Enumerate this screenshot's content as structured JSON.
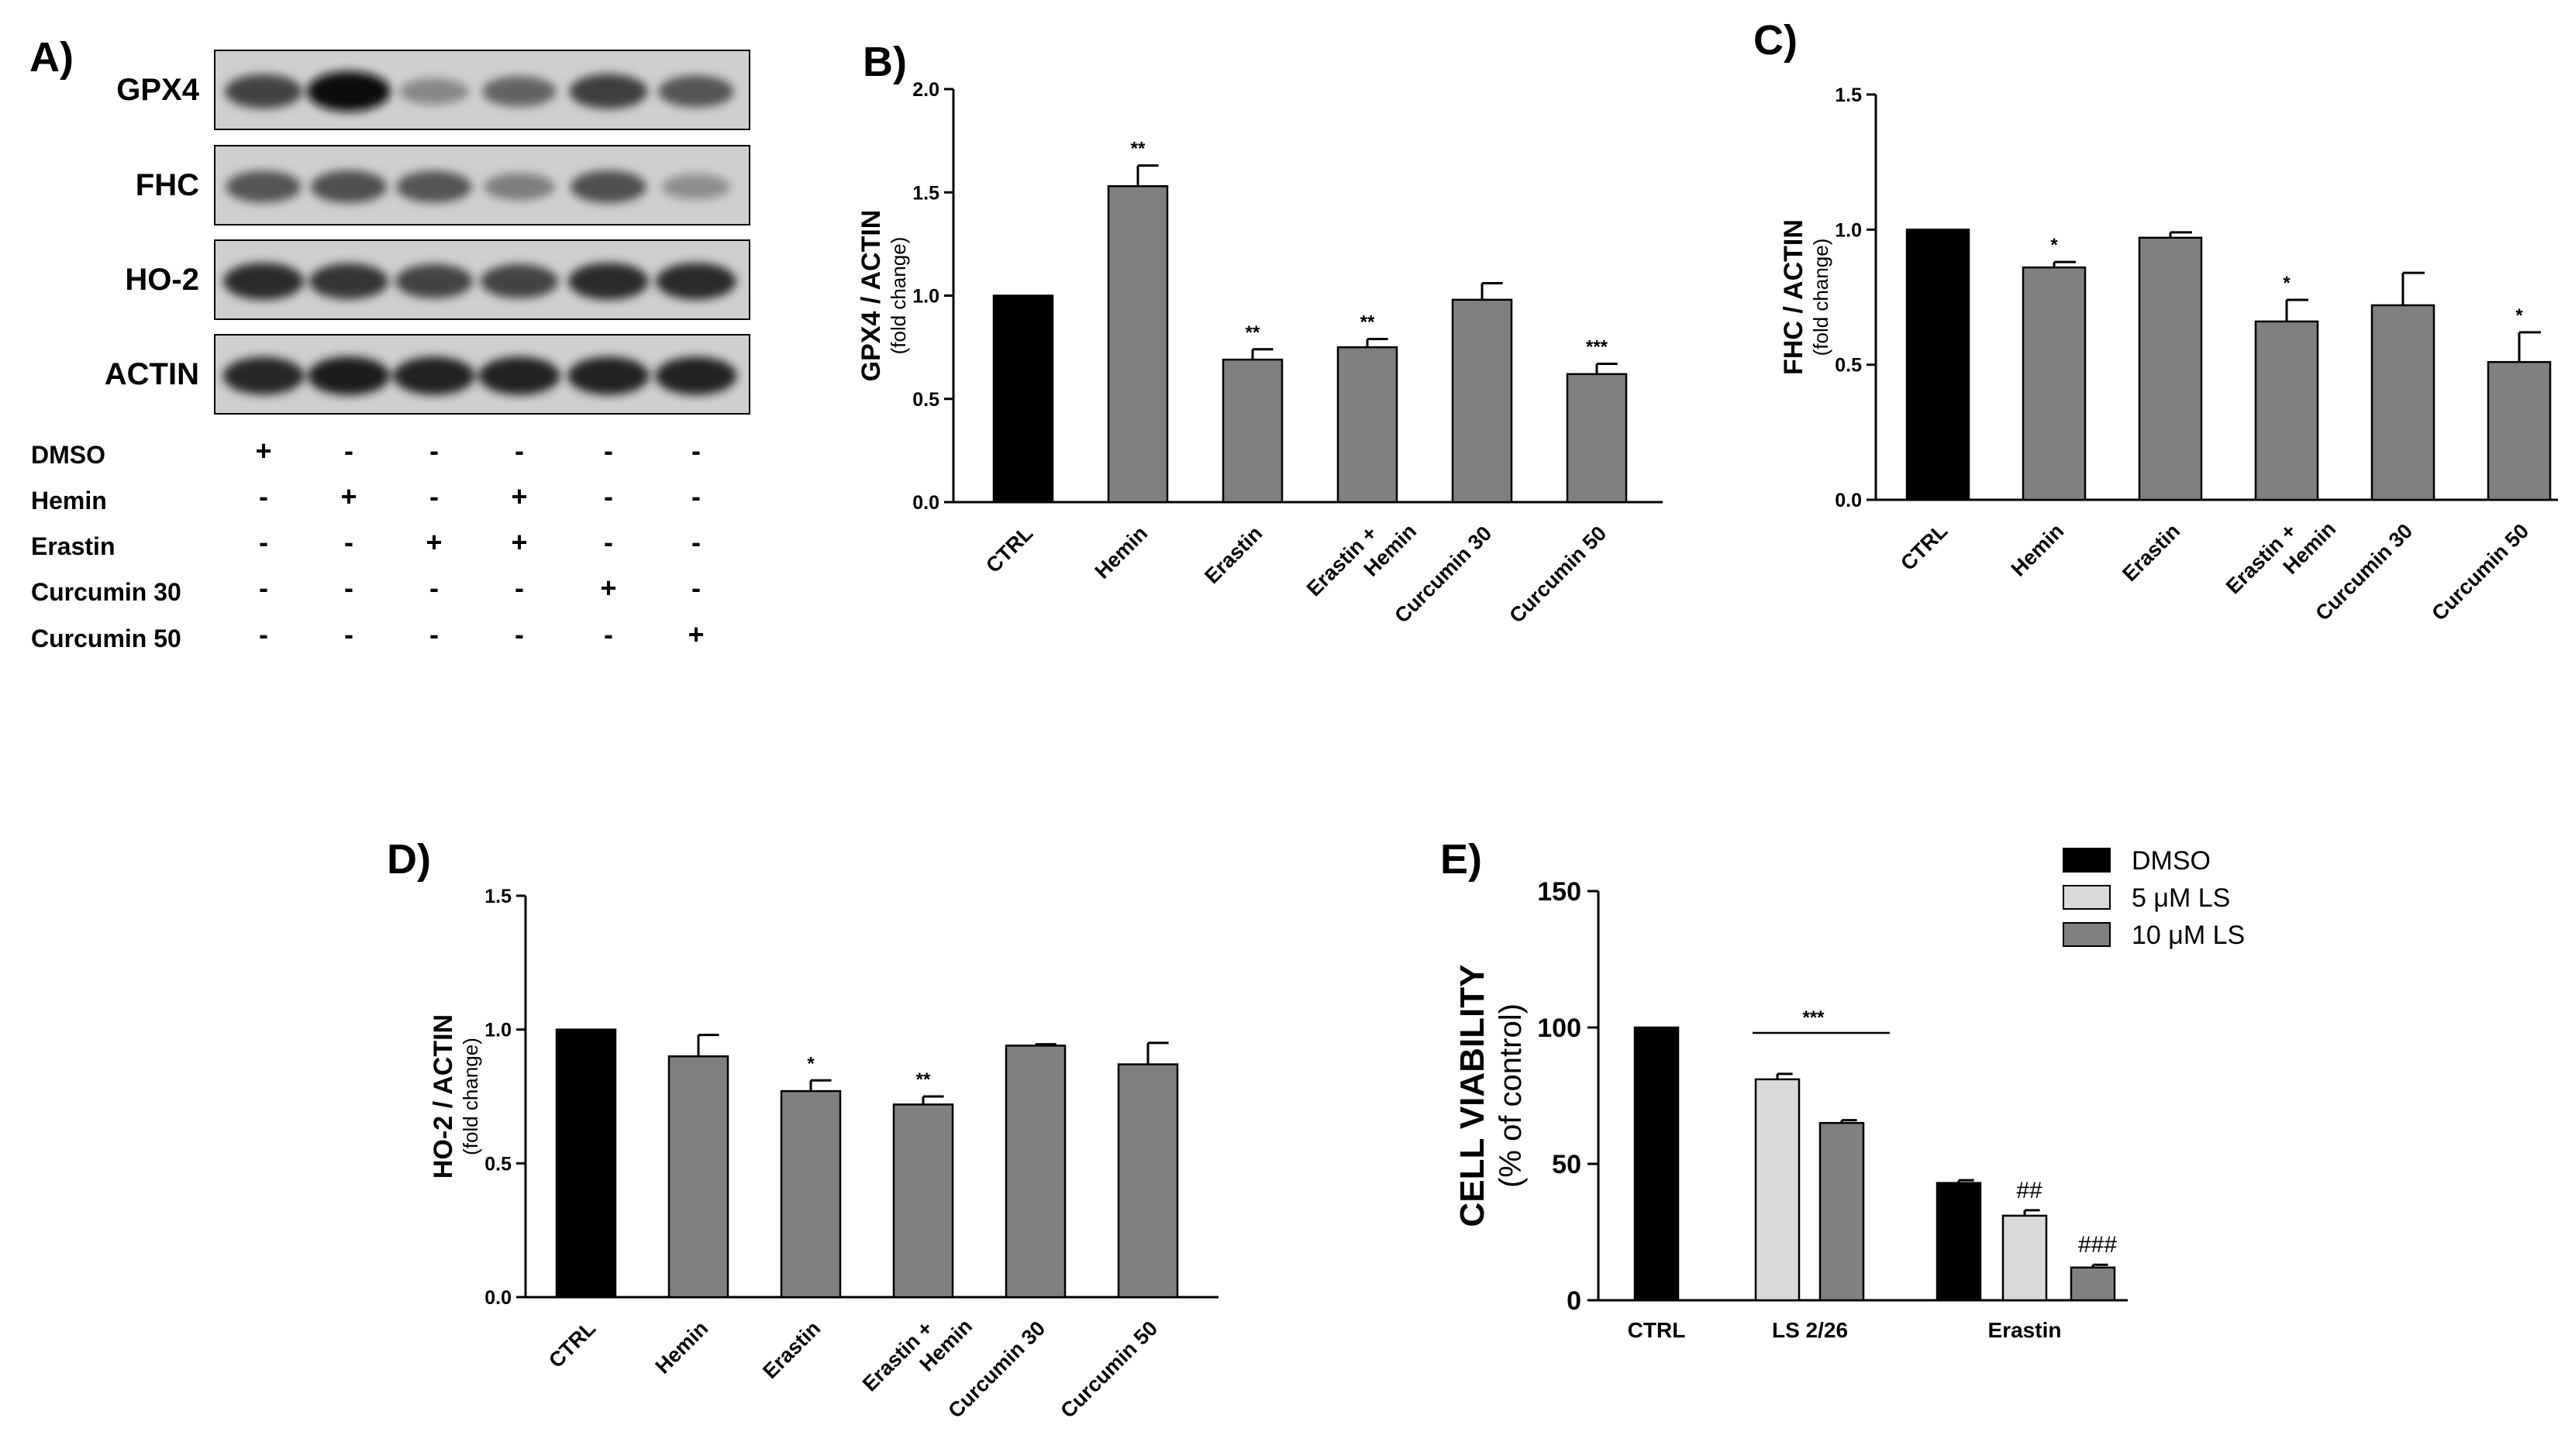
{
  "panel_a": {
    "label": "A)",
    "bands": [
      "GPX4",
      "FHC",
      "HO-2",
      "ACTIN"
    ],
    "band_intensity": [
      [
        0.72,
        1.0,
        0.35,
        0.55,
        0.75,
        0.62
      ],
      [
        0.62,
        0.65,
        0.62,
        0.4,
        0.65,
        0.32
      ],
      [
        0.85,
        0.8,
        0.72,
        0.72,
        0.85,
        0.85
      ],
      [
        0.88,
        0.92,
        0.9,
        0.9,
        0.9,
        0.9
      ]
    ],
    "treatments": [
      {
        "name": "DMSO",
        "signs": [
          "+",
          "-",
          "-",
          "-",
          "-",
          "-"
        ]
      },
      {
        "name": "Hemin",
        "signs": [
          "-",
          "+",
          "-",
          "+",
          "-",
          "-"
        ]
      },
      {
        "name": "Erastin",
        "signs": [
          "-",
          "-",
          "+",
          "+",
          "-",
          "-"
        ]
      },
      {
        "name": "Curcumin 30",
        "signs": [
          "-",
          "-",
          "-",
          "-",
          "+",
          "-"
        ]
      },
      {
        "name": "Curcumin 50",
        "signs": [
          "-",
          "-",
          "-",
          "-",
          "-",
          "+"
        ]
      }
    ]
  },
  "chart_data": [
    {
      "panel": "B)",
      "type": "bar",
      "ylabel": "GPX4 / ACTIN",
      "ylabel_sub": "(fold change)",
      "ylim": [
        0,
        2.0
      ],
      "yticks": [
        "0.0",
        "0.5",
        "1.0",
        "1.5",
        "2.0"
      ],
      "categories": [
        "CTRL",
        "Hemin",
        "Erastin",
        "Erastin +|Hemin",
        "Curcumin 30",
        "Curcumin 50"
      ],
      "values": [
        1.0,
        1.53,
        0.69,
        0.75,
        0.98,
        0.62
      ],
      "errors": [
        0,
        0.1,
        0.05,
        0.04,
        0.08,
        0.05
      ],
      "annotations": [
        "",
        "**",
        "**",
        "**",
        "",
        "***"
      ],
      "colors": [
        "#000000",
        "#808080",
        "#808080",
        "#808080",
        "#808080",
        "#808080"
      ]
    },
    {
      "panel": "C)",
      "type": "bar",
      "ylabel": "FHC / ACTIN",
      "ylabel_sub": "(fold change)",
      "ylim": [
        0,
        1.5
      ],
      "yticks": [
        "0.0",
        "0.5",
        "1.0",
        "1.5"
      ],
      "categories": [
        "CTRL",
        "Hemin",
        "Erastin",
        "Erastin +|Hemin",
        "Curcumin 30",
        "Curcumin 50"
      ],
      "values": [
        1.0,
        0.86,
        0.97,
        0.66,
        0.72,
        0.51
      ],
      "errors": [
        0,
        0.02,
        0.02,
        0.08,
        0.12,
        0.11
      ],
      "annotations": [
        "",
        "*",
        "",
        "*",
        "",
        "*"
      ],
      "colors": [
        "#000000",
        "#808080",
        "#808080",
        "#808080",
        "#808080",
        "#808080"
      ]
    },
    {
      "panel": "D)",
      "type": "bar",
      "ylabel": "HO-2 / ACTIN",
      "ylabel_sub": "(fold change)",
      "ylim": [
        0,
        1.5
      ],
      "yticks": [
        "0.0",
        "0.5",
        "1.0",
        "1.5"
      ],
      "categories": [
        "CTRL",
        "Hemin",
        "Erastin",
        "Erastin +|Hemin",
        "Curcumin 30",
        "Curcumin 50"
      ],
      "values": [
        1.0,
        0.9,
        0.77,
        0.72,
        0.94,
        0.87
      ],
      "errors": [
        0,
        0.08,
        0.04,
        0.03,
        0.005,
        0.08
      ],
      "annotations": [
        "",
        "",
        "*",
        "**",
        "",
        ""
      ],
      "colors": [
        "#000000",
        "#808080",
        "#808080",
        "#808080",
        "#808080",
        "#808080"
      ]
    },
    {
      "panel": "E)",
      "type": "bar",
      "ylabel": "CELL VIABILITY",
      "ylabel_sub": "(% of control)",
      "ylim": [
        0,
        150
      ],
      "yticks": [
        "0",
        "50",
        "100",
        "150"
      ],
      "categories": [
        "CTRL",
        "LS 2/26",
        "Erastin"
      ],
      "series": [
        {
          "name": "DMSO",
          "color": "#000000",
          "values": [
            100,
            null,
            43
          ],
          "errors": [
            0,
            null,
            1
          ]
        },
        {
          "name": "5 μM LS",
          "color": "#d9d9d9",
          "values": [
            null,
            81,
            31
          ],
          "errors": [
            null,
            2,
            2
          ]
        },
        {
          "name": "10 μM LS",
          "color": "#808080",
          "values": [
            null,
            65,
            12
          ],
          "errors": [
            null,
            1,
            1
          ]
        }
      ],
      "annotations": [
        {
          "text": "***",
          "category": "LS 2/26",
          "span": true
        },
        {
          "text": "##",
          "category": "Erastin",
          "series": "5 μM LS"
        },
        {
          "text": "###",
          "category": "Erastin",
          "series": "10 μM LS"
        }
      ],
      "legend_position": "top-right"
    }
  ]
}
